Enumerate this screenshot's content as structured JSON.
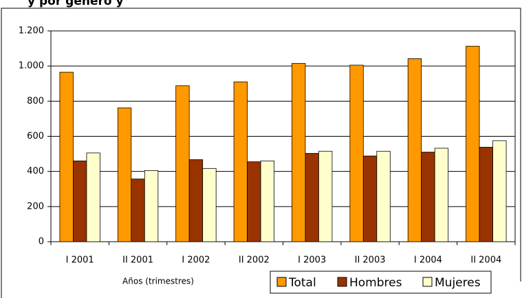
{
  "chart_data": {
    "type": "bar",
    "title": "y por género y",
    "xlabel": "Años (trimestres)",
    "categories": [
      "I 2001",
      "II 2001",
      "I 2002",
      "II 2002",
      "I 2003",
      "II 2003",
      "I 2004",
      "II 2004"
    ],
    "series": [
      {
        "name": "Total",
        "color": "#ff9900",
        "values": [
          965,
          762,
          888,
          910,
          1015,
          1005,
          1042,
          1113
        ]
      },
      {
        "name": "Hombres",
        "color": "#993300",
        "values": [
          460,
          357,
          467,
          455,
          503,
          488,
          510,
          538
        ]
      },
      {
        "name": "Mujeres",
        "color": "#ffffcc",
        "values": [
          505,
          405,
          417,
          460,
          515,
          515,
          532,
          575
        ]
      }
    ],
    "ylim": [
      0,
      1200
    ],
    "yticks": [
      0,
      200,
      400,
      600,
      800,
      {
        "value": 1000,
        "label": "1.000"
      },
      {
        "value": 1200,
        "label": "1.200"
      }
    ],
    "grid": true,
    "legend": "bottom-right"
  }
}
